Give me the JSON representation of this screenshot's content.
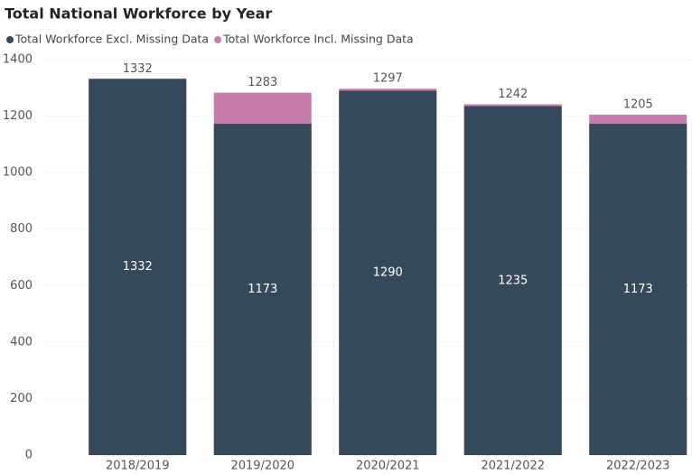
{
  "chart_data": {
    "type": "bar",
    "title": "Total National Workforce by Year",
    "categories": [
      "2018/2019",
      "2019/2020",
      "2020/2021",
      "2021/2022",
      "2022/2023"
    ],
    "series": [
      {
        "name": "Total Workforce Excl. Missing Data",
        "color": "#36495a",
        "values": [
          1332,
          1173,
          1290,
          1235,
          1173
        ]
      },
      {
        "name": "Total Workforce Incl. Missing Data",
        "color": "#c77fa9",
        "values": [
          1332,
          1283,
          1297,
          1242,
          1205
        ]
      }
    ],
    "ylim": [
      0,
      1400
    ],
    "yticks": [
      0,
      200,
      400,
      600,
      800,
      1000,
      1200,
      1400
    ],
    "grid": true
  }
}
